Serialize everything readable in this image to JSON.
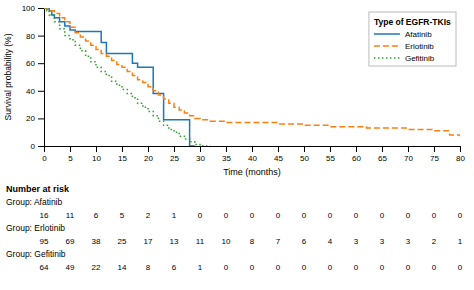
{
  "chart_data": [
    {
      "type": "step",
      "xlabel": "Time (months)",
      "ylabel": "Survival probability (%)",
      "xlim": [
        0,
        80
      ],
      "ylim": [
        0,
        100
      ],
      "xticks": [
        0,
        5,
        10,
        15,
        20,
        25,
        30,
        35,
        40,
        45,
        50,
        55,
        60,
        65,
        70,
        75,
        80
      ],
      "yticks": [
        0,
        20,
        40,
        60,
        80,
        100
      ],
      "grid": false,
      "legend": "upper right",
      "legend_title": "Type of EGFR-TKIs",
      "series": [
        {
          "name": "Afatinib",
          "line_style": "solid",
          "x": [
            0,
            0.5,
            1,
            1.5,
            2,
            3,
            4,
            5,
            6,
            7,
            8,
            9,
            10,
            11,
            12,
            13,
            14,
            15,
            16,
            17,
            18,
            19,
            20,
            21,
            22,
            23,
            24,
            25,
            26,
            27,
            28,
            29
          ],
          "values": [
            100,
            100,
            98,
            95,
            93,
            90,
            87,
            84,
            83,
            83,
            83,
            83,
            83,
            75,
            67,
            67,
            67,
            67,
            67,
            60,
            57,
            57,
            57,
            38,
            38,
            19,
            19,
            19,
            19,
            19,
            0,
            0
          ]
        },
        {
          "name": "Erlotinib",
          "line_style": "dashed",
          "x": [
            0,
            0.5,
            1,
            2,
            3,
            4,
            5,
            6,
            7,
            8,
            9,
            10,
            11,
            12,
            13,
            14,
            15,
            16,
            17,
            18,
            19,
            20,
            21,
            22,
            23,
            24,
            25,
            26,
            27,
            28,
            29,
            30,
            32,
            35,
            37,
            40,
            42,
            45,
            47,
            50,
            52,
            55,
            57,
            58,
            60,
            62,
            65,
            70,
            72,
            75,
            77,
            78,
            80
          ],
          "values": [
            100,
            99,
            98,
            96,
            93,
            90,
            86,
            82,
            79,
            76,
            73,
            70,
            67,
            65,
            62,
            59,
            57,
            54,
            51,
            48,
            46,
            43,
            40,
            37,
            34,
            31,
            28,
            26,
            24,
            22,
            20,
            19,
            18,
            17,
            17,
            17,
            17,
            16,
            16,
            15,
            15,
            14,
            14,
            14,
            14,
            13,
            13,
            12,
            12,
            11,
            11,
            8,
            7
          ]
        },
        {
          "name": "Gefitinib",
          "line_style": "dotted",
          "x": [
            0,
            0.5,
            1,
            2,
            3,
            4,
            5,
            6,
            7,
            8,
            9,
            10,
            11,
            12,
            13,
            14,
            15,
            16,
            17,
            18,
            19,
            20,
            21,
            22,
            23,
            24,
            25,
            26,
            27,
            28,
            29,
            30,
            31,
            32
          ],
          "values": [
            100,
            98,
            95,
            90,
            85,
            80,
            77,
            73,
            69,
            65,
            61,
            57,
            54,
            51,
            47,
            44,
            41,
            38,
            35,
            31,
            28,
            25,
            22,
            18,
            15,
            12,
            10,
            7,
            5,
            3,
            1,
            0,
            0,
            0
          ]
        }
      ]
    },
    {
      "type": "table",
      "title": "Number at risk",
      "xlim": [
        0,
        80
      ],
      "tick_labels": false,
      "data_labels": true,
      "x": [
        0,
        5,
        10,
        15,
        20,
        25,
        30,
        35,
        40,
        45,
        50,
        55,
        60,
        65,
        70,
        75,
        80
      ],
      "series": [
        {
          "name": "Group: Afatinib",
          "values": [
            16,
            11,
            6,
            5,
            2,
            1,
            0,
            0,
            0,
            0,
            0,
            0,
            0,
            0,
            0,
            0,
            0
          ]
        },
        {
          "name": "Group: Erlotinib",
          "values": [
            95,
            69,
            38,
            25,
            17,
            13,
            11,
            10,
            8,
            7,
            6,
            4,
            3,
            3,
            3,
            2,
            1
          ]
        },
        {
          "name": "Group: Gefitinib",
          "values": [
            64,
            49,
            22,
            14,
            8,
            6,
            1,
            0,
            0,
            0,
            0,
            0,
            0,
            0,
            0,
            0,
            0
          ]
        }
      ]
    }
  ]
}
